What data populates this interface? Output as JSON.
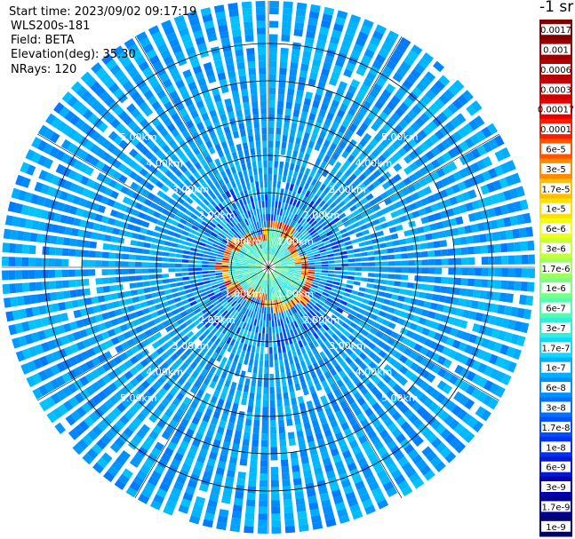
{
  "header": {
    "start_time": "Start time: 2023/09/02 09:17:19",
    "instrument": "WLS200s-181",
    "field": "Field: BETA",
    "elevation": "Elevation(deg): 35.30",
    "nrays": "NRays: 120"
  },
  "colorbar": {
    "unit_label": "-1 sr",
    "ticks": [
      "0.0017",
      "0.001",
      "0.0006",
      "0.0003",
      "0.00017",
      "0.0001",
      "6e-5",
      "3e-5",
      "1.7e-5",
      "1e-5",
      "6e-6",
      "3e-6",
      "1.7e-6",
      "1e-6",
      "6e-7",
      "3e-7",
      "1.7e-7",
      "1e-7",
      "6e-8",
      "3e-8",
      "1.7e-8",
      "1e-8",
      "6e-9",
      "3e-9",
      "1.7e-9",
      "1e-9"
    ],
    "colors": [
      "#7f0000",
      "#990000",
      "#b30000",
      "#cc0000",
      "#e60000",
      "#ff1a00",
      "#ff5500",
      "#ff8c00",
      "#ffbf00",
      "#ffe000",
      "#f0ff10",
      "#c8ff38",
      "#a0ff60",
      "#78ff88",
      "#50ffb0",
      "#30f0d8",
      "#10d8ff",
      "#00b0ff",
      "#0090ff",
      "#0070ff",
      "#0050ff",
      "#0030f0",
      "#0018d0",
      "#0000b0",
      "#000090",
      "#000070"
    ]
  },
  "chart_data": {
    "type": "heatmap",
    "projection": "polar PPI",
    "nrays": 120,
    "elevation_deg": 35.3,
    "range_ring_labels": [
      "1.00km",
      "2.00km",
      "3.00km",
      "4.00km",
      "5.00km",
      "6.00km"
    ],
    "range_rings_km": [
      1,
      2,
      3,
      4,
      5,
      6
    ],
    "dominant_background_value": "3e-8 to 1e-7",
    "ring_feature": {
      "description_value": "1e-5 to 1.7e-4",
      "radius_km_range": [
        0.55,
        1.45
      ]
    },
    "near_field_value": "1.7e-7 to 1.7e-6"
  }
}
